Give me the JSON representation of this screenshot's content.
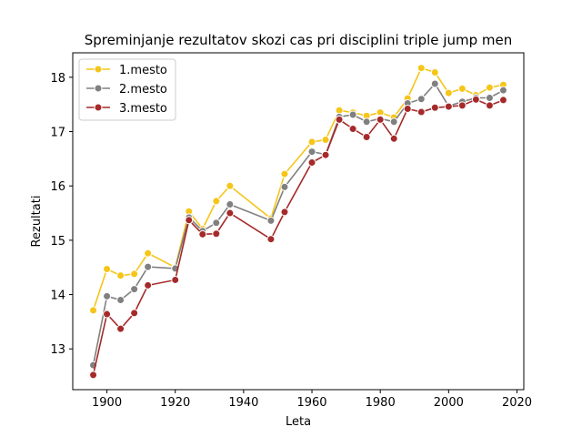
{
  "chart_data": {
    "type": "line",
    "title": "Spreminjanje rezultatov skozi cas pri disciplini triple jump men",
    "xlabel": "Leta",
    "ylabel": "Rezultati",
    "xlim": [
      1890,
      2022
    ],
    "ylim": [
      12.25,
      18.45
    ],
    "x_ticks": [
      1900,
      1920,
      1940,
      1960,
      1980,
      2000,
      2020
    ],
    "y_ticks": [
      13,
      14,
      15,
      16,
      17,
      18
    ],
    "grid": false,
    "legend_position": "top-left",
    "x": [
      1896,
      1900,
      1904,
      1908,
      1912,
      1920,
      1924,
      1928,
      1932,
      1936,
      1948,
      1952,
      1960,
      1964,
      1968,
      1972,
      1976,
      1980,
      1984,
      1988,
      1992,
      1996,
      2000,
      2004,
      2008,
      2012,
      2016
    ],
    "series": [
      {
        "name": "1.mesto",
        "color": "#f5c518",
        "values": [
          13.71,
          14.47,
          14.35,
          14.38,
          14.76,
          14.5,
          15.53,
          15.21,
          15.72,
          16.0,
          15.4,
          16.22,
          16.81,
          16.85,
          17.39,
          17.35,
          17.29,
          17.35,
          17.26,
          17.61,
          18.17,
          18.09,
          17.71,
          17.79,
          17.67,
          17.81,
          17.86
        ]
      },
      {
        "name": "2.mesto",
        "color": "#808080",
        "values": [
          12.7,
          13.97,
          13.9,
          14.1,
          14.51,
          14.48,
          15.42,
          15.17,
          15.32,
          15.66,
          15.36,
          15.98,
          16.63,
          16.58,
          17.27,
          17.31,
          17.18,
          17.24,
          17.18,
          17.52,
          17.6,
          17.88,
          17.47,
          17.55,
          17.62,
          17.62,
          17.76
        ]
      },
      {
        "name": "3.mesto",
        "color": "#a52a2a",
        "values": [
          12.52,
          13.64,
          13.37,
          13.66,
          14.17,
          14.27,
          15.37,
          15.11,
          15.12,
          15.5,
          15.02,
          15.52,
          16.43,
          16.57,
          17.22,
          17.05,
          16.9,
          17.22,
          16.87,
          17.42,
          17.36,
          17.44,
          17.46,
          17.48,
          17.59,
          17.48,
          17.58
        ]
      }
    ]
  }
}
